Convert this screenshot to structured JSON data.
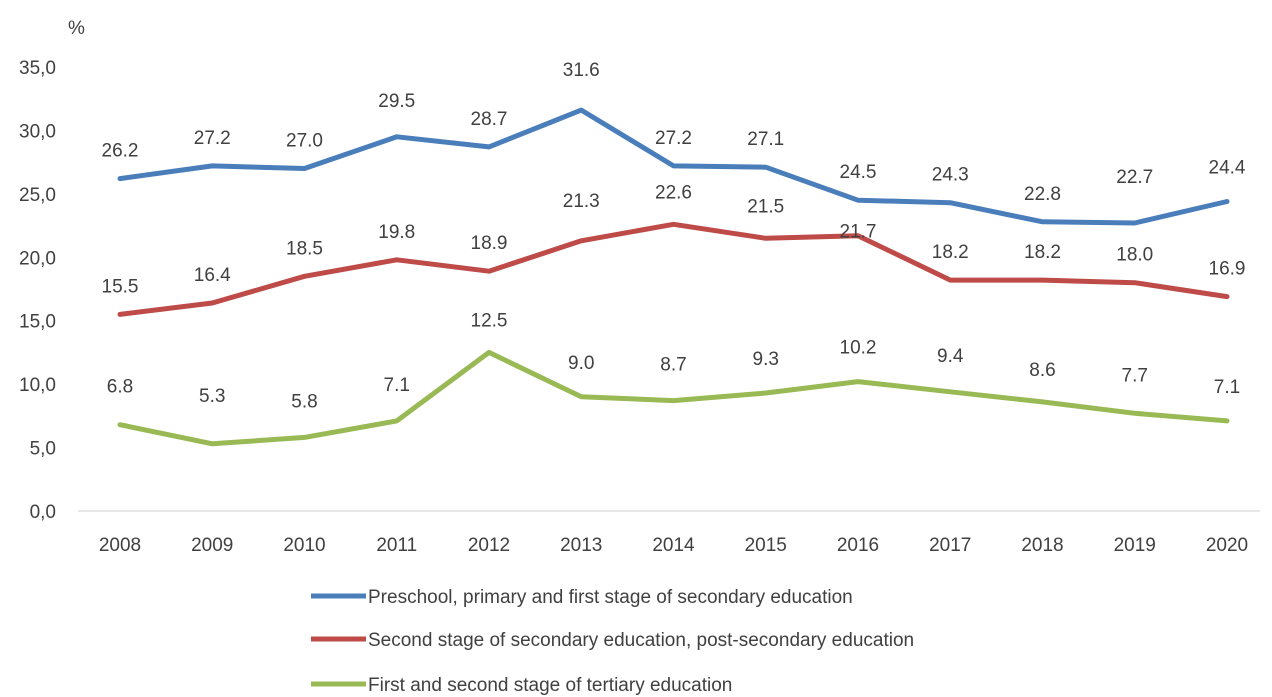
{
  "chart_data": {
    "type": "line",
    "ylabel": "%",
    "ylim": [
      0,
      35
    ],
    "yticks": [
      "0,0",
      "5,0",
      "10,0",
      "15,0",
      "20,0",
      "25,0",
      "30,0",
      "35,0"
    ],
    "yticks_values": [
      0,
      5,
      10,
      15,
      20,
      25,
      30,
      35
    ],
    "x": [
      "2008",
      "2009",
      "2010",
      "2011",
      "2012",
      "2013",
      "2014",
      "2015",
      "2016",
      "2017",
      "2018",
      "2019",
      "2020"
    ],
    "grid": false,
    "legend_position": "bottom",
    "series": [
      {
        "name": "Preschool, primary and first stage of secondary education",
        "color": "#4a7ebb",
        "values": [
          26.2,
          27.2,
          27.0,
          29.5,
          28.7,
          31.6,
          27.2,
          27.1,
          24.5,
          24.3,
          22.8,
          22.7,
          24.4
        ],
        "labels": [
          "26.2",
          "27.2",
          "27.0",
          "29.5",
          "28.7",
          "31.6",
          "27.2",
          "27.1",
          "24.5",
          "24.3",
          "22.8",
          "22.7",
          "24.4"
        ]
      },
      {
        "name": "Second stage of secondary education, post-secondary education",
        "color": "#be4b48",
        "values": [
          15.5,
          16.4,
          18.5,
          19.8,
          18.9,
          21.3,
          22.6,
          21.5,
          21.7,
          18.2,
          18.2,
          18.0,
          16.9
        ],
        "labels": [
          "15.5",
          "16.4",
          "18.5",
          "19.8",
          "18.9",
          "21.3",
          "22.6",
          "21.5",
          "21.7",
          "18.2",
          "18.2",
          "18.0",
          "16.9"
        ]
      },
      {
        "name": "First and second stage of tertiary education",
        "color": "#98b954",
        "values": [
          6.8,
          5.3,
          5.8,
          7.1,
          12.5,
          9.0,
          8.7,
          9.3,
          10.2,
          9.4,
          8.6,
          7.7,
          7.1
        ],
        "labels": [
          "6.8",
          "5.3",
          "5.8",
          "7.1",
          "12.5",
          "9.0",
          "8.7",
          "9.3",
          "10.2",
          "9.4",
          "8.6",
          "7.7",
          "7.1"
        ]
      }
    ]
  }
}
